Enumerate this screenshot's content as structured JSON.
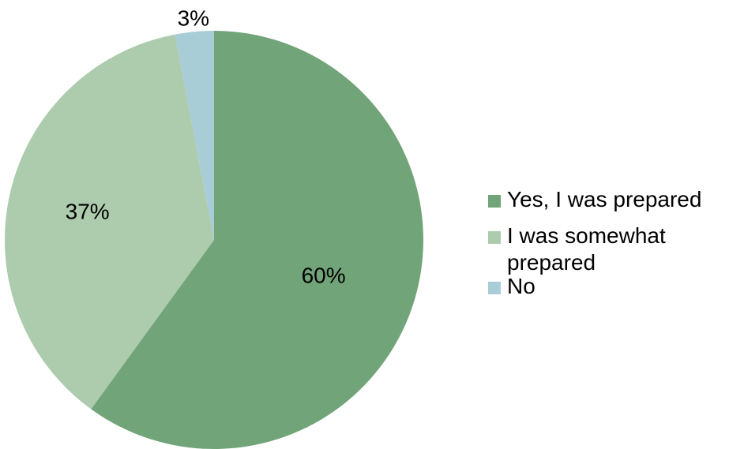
{
  "chart_data": {
    "type": "pie",
    "title": "",
    "slices": [
      {
        "label": "Yes, I was prepared",
        "value": 60,
        "value_label": "60%",
        "color": "#72a479"
      },
      {
        "label": "I was somewhat prepared",
        "value": 37,
        "value_label": "37%",
        "color": "#adcbad"
      },
      {
        "label": "No",
        "value": 3,
        "value_label": "3%",
        "color": "#a8cdd7"
      }
    ],
    "start_angle_deg": 0,
    "direction": "clockwise",
    "legend_position": "right"
  },
  "legend": {
    "items": [
      {
        "label": "Yes, I was prepared",
        "color": "#72a479"
      },
      {
        "label": "I was somewhat prepared",
        "color": "#adcbad"
      },
      {
        "label": "No",
        "color": "#a8cdd7"
      }
    ]
  }
}
